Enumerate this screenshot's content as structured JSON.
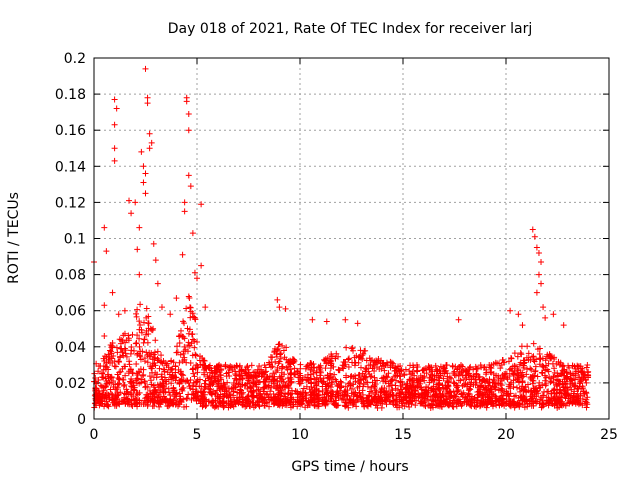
{
  "chart_data": {
    "type": "scatter",
    "title": "Day 018 of 2021, Rate Of TEC Index for receiver larj",
    "xlabel": "GPS time / hours",
    "ylabel": "ROTI / TECUs",
    "xlim": [
      0,
      25
    ],
    "ylim": [
      0,
      0.2
    ],
    "xticks": [
      "0",
      "5",
      "10",
      "15",
      "20",
      "25"
    ],
    "yticks": [
      "0",
      "0.02",
      "0.04",
      "0.06",
      "0.08",
      "0.1",
      "0.12",
      "0.14",
      "0.16",
      "0.18",
      "0.2"
    ],
    "grid": true,
    "marker": "+",
    "color": "#ff0000",
    "series": [
      {
        "values": [
          [
            0.0,
            0.087
          ],
          [
            0.5,
            0.106
          ],
          [
            0.5,
            0.063
          ],
          [
            0.5,
            0.046
          ],
          [
            1.0,
            0.177
          ],
          [
            1.1,
            0.172
          ],
          [
            1.0,
            0.163
          ],
          [
            1.0,
            0.15
          ],
          [
            1.0,
            0.143
          ],
          [
            0.6,
            0.093
          ],
          [
            0.9,
            0.07
          ],
          [
            1.2,
            0.058
          ],
          [
            1.5,
            0.06
          ],
          [
            1.7,
            0.121
          ],
          [
            1.8,
            0.114
          ],
          [
            2.0,
            0.12
          ],
          [
            2.1,
            0.094
          ],
          [
            2.2,
            0.106
          ],
          [
            2.3,
            0.148
          ],
          [
            2.4,
            0.14
          ],
          [
            2.4,
            0.131
          ],
          [
            2.5,
            0.136
          ],
          [
            2.5,
            0.125
          ],
          [
            2.6,
            0.178
          ],
          [
            2.6,
            0.175
          ],
          [
            2.7,
            0.158
          ],
          [
            2.7,
            0.15
          ],
          [
            2.8,
            0.153
          ],
          [
            2.5,
            0.194
          ],
          [
            2.2,
            0.08
          ],
          [
            2.9,
            0.097
          ],
          [
            3.0,
            0.088
          ],
          [
            3.1,
            0.075
          ],
          [
            3.3,
            0.062
          ],
          [
            3.7,
            0.058
          ],
          [
            4.0,
            0.067
          ],
          [
            4.3,
            0.091
          ],
          [
            4.4,
            0.12
          ],
          [
            4.5,
            0.178
          ],
          [
            4.5,
            0.176
          ],
          [
            4.6,
            0.169
          ],
          [
            4.6,
            0.16
          ],
          [
            4.6,
            0.135
          ],
          [
            4.7,
            0.129
          ],
          [
            4.4,
            0.115
          ],
          [
            4.8,
            0.103
          ],
          [
            4.9,
            0.081
          ],
          [
            5.0,
            0.078
          ],
          [
            5.2,
            0.119
          ],
          [
            5.2,
            0.085
          ],
          [
            5.4,
            0.062
          ],
          [
            8.9,
            0.066
          ],
          [
            9.0,
            0.062
          ],
          [
            9.3,
            0.061
          ],
          [
            10.6,
            0.055
          ],
          [
            11.3,
            0.054
          ],
          [
            12.2,
            0.055
          ],
          [
            12.8,
            0.053
          ],
          [
            17.7,
            0.055
          ],
          [
            20.2,
            0.06
          ],
          [
            20.6,
            0.058
          ],
          [
            20.8,
            0.052
          ],
          [
            21.3,
            0.105
          ],
          [
            21.4,
            0.101
          ],
          [
            21.5,
            0.095
          ],
          [
            21.6,
            0.092
          ],
          [
            21.7,
            0.087
          ],
          [
            21.6,
            0.08
          ],
          [
            21.7,
            0.075
          ],
          [
            21.5,
            0.07
          ],
          [
            21.8,
            0.062
          ],
          [
            21.9,
            0.056
          ],
          [
            22.3,
            0.058
          ],
          [
            22.8,
            0.052
          ]
        ]
      }
    ],
    "dense_band": {
      "description": "",
      "typical_range": [
        0.005,
        0.035
      ]
    }
  }
}
